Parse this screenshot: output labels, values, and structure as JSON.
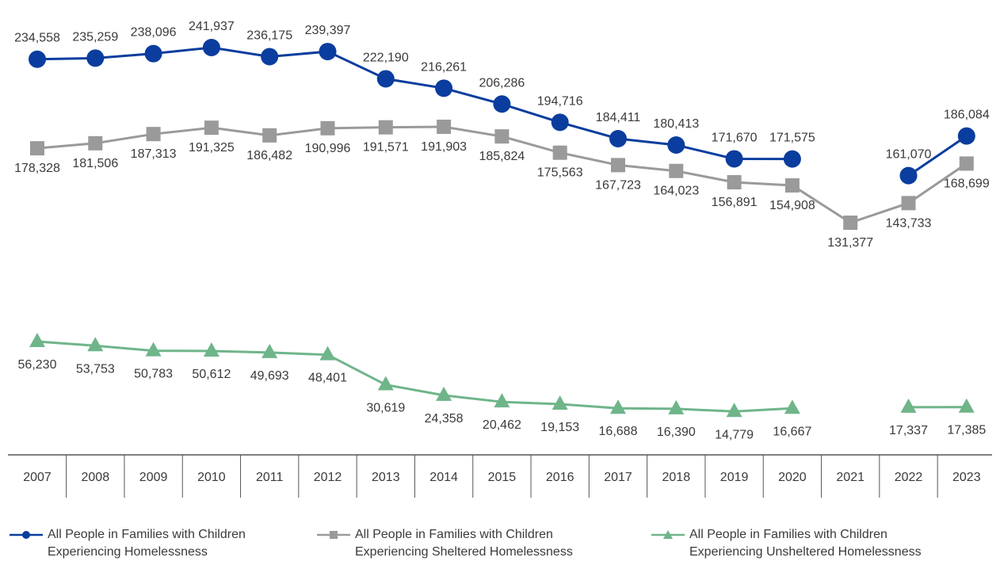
{
  "chart_data": {
    "type": "line",
    "categories": [
      "2007",
      "2008",
      "2009",
      "2010",
      "2011",
      "2012",
      "2013",
      "2014",
      "2015",
      "2016",
      "2017",
      "2018",
      "2019",
      "2020",
      "2021",
      "2022",
      "2023"
    ],
    "series": [
      {
        "name": "All People in Families with Children Experiencing Homelessness",
        "color": "#0a3d9e",
        "marker": "circle",
        "values": [
          234558,
          235259,
          238096,
          241937,
          236175,
          239397,
          222190,
          216261,
          206286,
          194716,
          184411,
          180413,
          171670,
          171575,
          null,
          161070,
          186084
        ],
        "labels": [
          "234,558",
          "235,259",
          "238,096",
          "241,937",
          "236,175",
          "239,397",
          "222,190",
          "216,261",
          "206,286",
          "194,716",
          "184,411",
          "180,413",
          "171,670",
          "171,575",
          null,
          "161,070",
          "186,084"
        ]
      },
      {
        "name": "All People in Families with Children Experiencing Sheltered Homelessness",
        "color": "#9a9a9a",
        "marker": "square",
        "values": [
          178328,
          181506,
          187313,
          191325,
          186482,
          190996,
          191571,
          191903,
          185824,
          175563,
          167723,
          164023,
          156891,
          154908,
          131377,
          143733,
          168699
        ],
        "labels": [
          "178,328",
          "181,506",
          "187,313",
          "191,325",
          "186,482",
          "190,996",
          "191,571",
          "191,903",
          "185,824",
          "175,563",
          "167,723",
          "164,023",
          "156,891",
          "154,908",
          "131,377",
          "143,733",
          "168,699"
        ]
      },
      {
        "name": "All People in Families with Children Experiencing Unsheltered Homelessness",
        "color": "#6fb58a",
        "marker": "triangle",
        "values": [
          56230,
          53753,
          50783,
          50612,
          49693,
          48401,
          30619,
          24358,
          20462,
          19153,
          16688,
          16390,
          14779,
          16667,
          null,
          17337,
          17385
        ],
        "labels": [
          "56,230",
          "53,753",
          "50,783",
          "50,612",
          "49,693",
          "48,401",
          "30,619",
          "24,358",
          "20,462",
          "19,153",
          "16,688",
          "16,390",
          "14,779",
          "16,667",
          null,
          "17,337",
          "17,385"
        ]
      }
    ],
    "legend": {
      "position": "bottom",
      "items": [
        {
          "line1": "All People in Families with Children",
          "line2": "Experiencing Homelessness"
        },
        {
          "line1": "All People in Families with Children",
          "line2": "Experiencing Sheltered Homelessness"
        },
        {
          "line1": "All People in Families with Children",
          "line2": "Experiencing Unsheltered Homelessness"
        }
      ]
    },
    "grid": false
  }
}
